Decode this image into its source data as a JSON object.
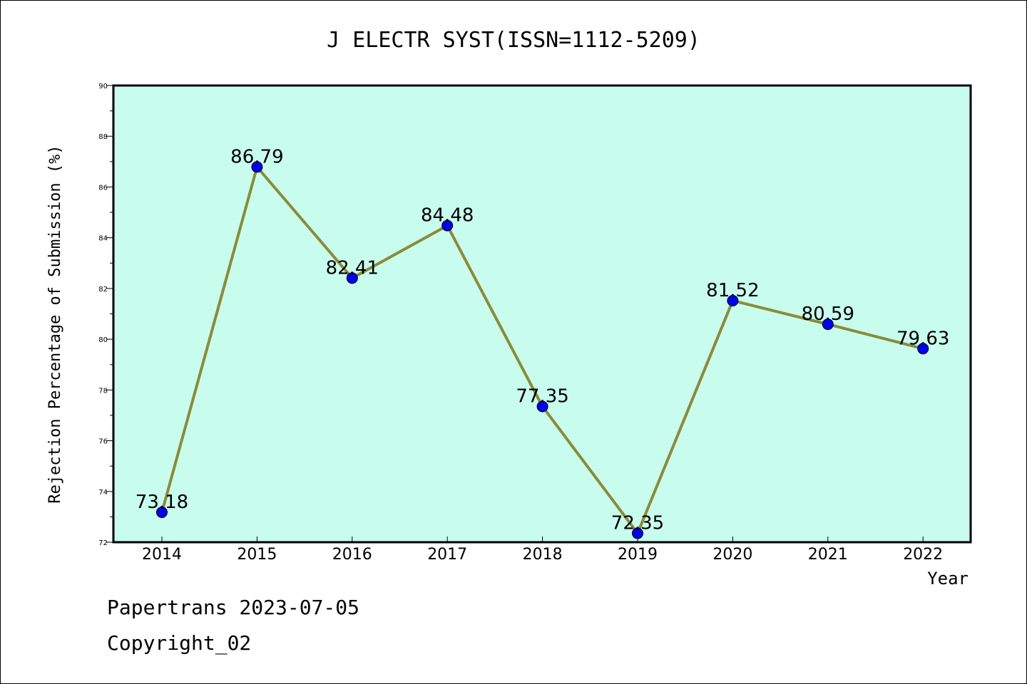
{
  "chart_data": {
    "type": "line",
    "title": "J ELECTR SYST(ISSN=1112-5209)",
    "xlabel": "Year",
    "ylabel": "Rejection Percentage of Submission (%)",
    "categories": [
      "2014",
      "2015",
      "2016",
      "2017",
      "2018",
      "2019",
      "2020",
      "2021",
      "2022"
    ],
    "series": [
      {
        "values": [
          73.18,
          86.79,
          82.41,
          84.48,
          77.35,
          72.35,
          81.52,
          80.59,
          79.63
        ],
        "data_labels": [
          "73.18",
          "86.79",
          "82.41",
          "84.48",
          "77.35",
          "72.35",
          "81.52",
          "80.59",
          "79.63"
        ],
        "line_color": "#8B8B3A",
        "marker_color": "#0000EE"
      }
    ],
    "ylim": [
      72,
      90
    ],
    "yticks": [
      "72",
      "74",
      "76",
      "78",
      "80",
      "82",
      "84",
      "86",
      "88",
      "90"
    ],
    "plot_background": "#C8FDEE",
    "grid": false,
    "legend": "none"
  },
  "footer": {
    "line1": "Papertrans 2023-07-05",
    "line2": "Copyright_02"
  }
}
